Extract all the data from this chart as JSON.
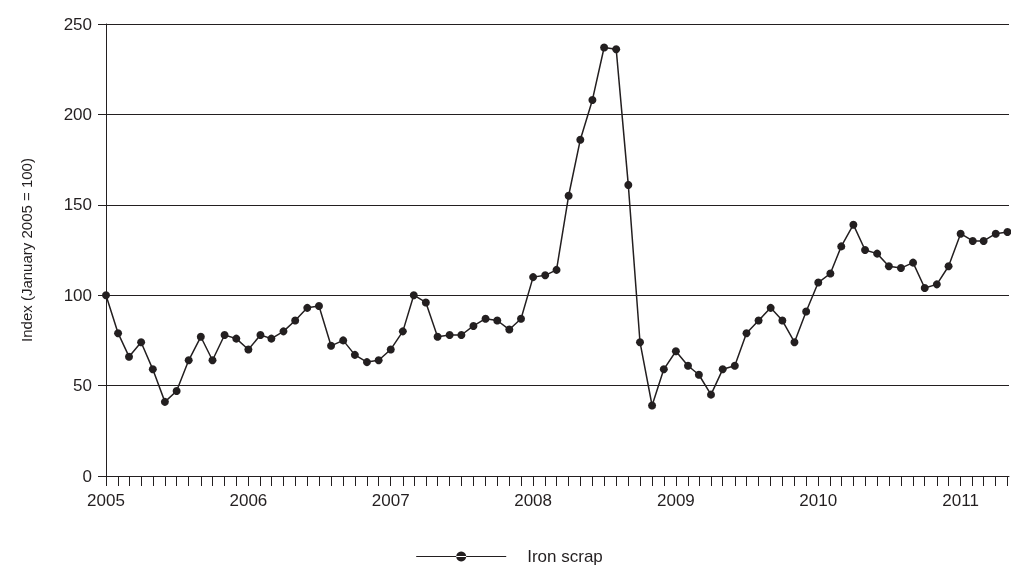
{
  "chart_data": {
    "type": "line",
    "ylabel": "Index (January 2005 = 100)",
    "x": [
      "2005-01",
      "2005-02",
      "2005-03",
      "2005-04",
      "2005-05",
      "2005-06",
      "2005-07",
      "2005-08",
      "2005-09",
      "2005-10",
      "2005-11",
      "2005-12",
      "2006-01",
      "2006-02",
      "2006-03",
      "2006-04",
      "2006-05",
      "2006-06",
      "2006-07",
      "2006-08",
      "2006-09",
      "2006-10",
      "2006-11",
      "2006-12",
      "2007-01",
      "2007-02",
      "2007-03",
      "2007-04",
      "2007-05",
      "2007-06",
      "2007-07",
      "2007-08",
      "2007-09",
      "2007-10",
      "2007-11",
      "2007-12",
      "2008-01",
      "2008-02",
      "2008-03",
      "2008-04",
      "2008-05",
      "2008-06",
      "2008-07",
      "2008-08",
      "2008-09",
      "2008-10",
      "2008-11",
      "2008-12",
      "2009-01",
      "2009-02",
      "2009-03",
      "2009-04",
      "2009-05",
      "2009-06",
      "2009-07",
      "2009-08",
      "2009-09",
      "2009-10",
      "2009-11",
      "2009-12",
      "2010-01",
      "2010-02",
      "2010-03",
      "2010-04",
      "2010-05",
      "2010-06",
      "2010-07",
      "2010-08",
      "2010-09",
      "2010-10",
      "2010-11",
      "2010-12",
      "2011-01",
      "2011-02",
      "2011-03",
      "2011-04",
      "2011-05"
    ],
    "series": [
      {
        "name": "Iron scrap",
        "color": "#231f20",
        "values": [
          100,
          79,
          66,
          74,
          59,
          41,
          47,
          64,
          77,
          64,
          78,
          76,
          70,
          78,
          76,
          80,
          86,
          93,
          94,
          72,
          75,
          67,
          63,
          64,
          70,
          80,
          100,
          96,
          77,
          78,
          78,
          83,
          87,
          86,
          81,
          87,
          110,
          111,
          114,
          155,
          186,
          208,
          237,
          236,
          161,
          74,
          39,
          59,
          69,
          61,
          56,
          45,
          59,
          61,
          79,
          86,
          93,
          86,
          74,
          91,
          107,
          112,
          127,
          139,
          125,
          123,
          116,
          115,
          118,
          104,
          106,
          116,
          134,
          130,
          130,
          134,
          135
        ]
      }
    ],
    "xlim": [
      "2005-01",
      "2011-05-05"
    ],
    "xticks": [
      {
        "value": "2005-01",
        "label": "2005"
      },
      {
        "value": "2005-02",
        "label": null
      },
      {
        "value": "2005-03",
        "label": null
      },
      {
        "value": "2005-04",
        "label": null
      },
      {
        "value": "2005-05",
        "label": null
      },
      {
        "value": "2005-06",
        "label": null
      },
      {
        "value": "2005-07",
        "label": null
      },
      {
        "value": "2005-08",
        "label": null
      },
      {
        "value": "2005-09",
        "label": null
      },
      {
        "value": "2005-10",
        "label": null
      },
      {
        "value": "2005-11",
        "label": null
      },
      {
        "value": "2005-12",
        "label": null
      },
      {
        "value": "2006-01",
        "label": "2006"
      },
      {
        "value": "2006-02",
        "label": null
      },
      {
        "value": "2006-03",
        "label": null
      },
      {
        "value": "2006-04",
        "label": null
      },
      {
        "value": "2006-05",
        "label": null
      },
      {
        "value": "2006-06",
        "label": null
      },
      {
        "value": "2006-07",
        "label": null
      },
      {
        "value": "2006-08",
        "label": null
      },
      {
        "value": "2006-09",
        "label": null
      },
      {
        "value": "2006-10",
        "label": null
      },
      {
        "value": "2006-11",
        "label": null
      },
      {
        "value": "2006-12",
        "label": null
      },
      {
        "value": "2007-01",
        "label": "2007"
      },
      {
        "value": "2007-02",
        "label": null
      },
      {
        "value": "2007-03",
        "label": null
      },
      {
        "value": "2007-04",
        "label": null
      },
      {
        "value": "2007-05",
        "label": null
      },
      {
        "value": "2007-06",
        "label": null
      },
      {
        "value": "2007-07",
        "label": null
      },
      {
        "value": "2007-08",
        "label": null
      },
      {
        "value": "2007-09",
        "label": null
      },
      {
        "value": "2007-10",
        "label": null
      },
      {
        "value": "2007-11",
        "label": null
      },
      {
        "value": "2007-12",
        "label": null
      },
      {
        "value": "2008-01",
        "label": "2008"
      },
      {
        "value": "2008-02",
        "label": null
      },
      {
        "value": "2008-03",
        "label": null
      },
      {
        "value": "2008-04",
        "label": null
      },
      {
        "value": "2008-05",
        "label": null
      },
      {
        "value": "2008-06",
        "label": null
      },
      {
        "value": "2008-07",
        "label": null
      },
      {
        "value": "2008-08",
        "label": null
      },
      {
        "value": "2008-09",
        "label": null
      },
      {
        "value": "2008-10",
        "label": null
      },
      {
        "value": "2008-11",
        "label": null
      },
      {
        "value": "2008-12",
        "label": null
      },
      {
        "value": "2009-01",
        "label": "2009"
      },
      {
        "value": "2009-02",
        "label": null
      },
      {
        "value": "2009-03",
        "label": null
      },
      {
        "value": "2009-04",
        "label": null
      },
      {
        "value": "2009-05",
        "label": null
      },
      {
        "value": "2009-06",
        "label": null
      },
      {
        "value": "2009-07",
        "label": null
      },
      {
        "value": "2009-08",
        "label": null
      },
      {
        "value": "2009-09",
        "label": null
      },
      {
        "value": "2009-10",
        "label": null
      },
      {
        "value": "2009-11",
        "label": null
      },
      {
        "value": "2009-12",
        "label": null
      },
      {
        "value": "2010-01",
        "label": "2010"
      },
      {
        "value": "2010-02",
        "label": null
      },
      {
        "value": "2010-03",
        "label": null
      },
      {
        "value": "2010-04",
        "label": null
      },
      {
        "value": "2010-05",
        "label": null
      },
      {
        "value": "2010-06",
        "label": null
      },
      {
        "value": "2010-07",
        "label": null
      },
      {
        "value": "2010-08",
        "label": null
      },
      {
        "value": "2010-09",
        "label": null
      },
      {
        "value": "2010-10",
        "label": null
      },
      {
        "value": "2010-11",
        "label": null
      },
      {
        "value": "2010-12",
        "label": null
      },
      {
        "value": "2011-01",
        "label": "2011"
      },
      {
        "value": "2011-02",
        "label": null
      },
      {
        "value": "2011-03",
        "label": null
      },
      {
        "value": "2011-04",
        "label": null
      },
      {
        "value": "2011-05",
        "label": null
      }
    ],
    "ylim": [
      0,
      250
    ],
    "yticks": [
      0,
      50,
      100,
      150,
      200,
      250
    ],
    "grid": "y",
    "legend": "bottom",
    "marker": "circle",
    "line_style": "solid"
  }
}
